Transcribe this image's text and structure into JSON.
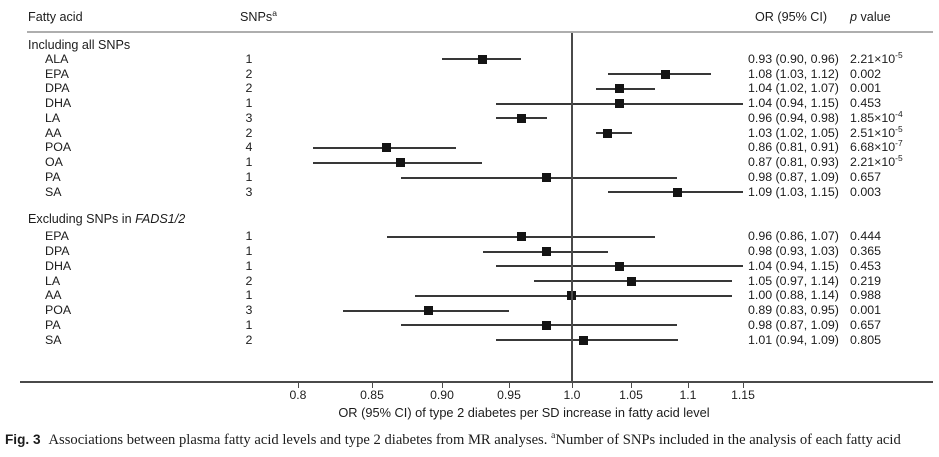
{
  "header": {
    "col_fatty_acid": "Fatty acid",
    "col_snps": "SNPs",
    "col_snps_sup": "a",
    "col_or": "OR (95% CI)",
    "col_p_italic": "p",
    "col_p_rest": " value"
  },
  "caption": {
    "fig_label": "Fig. 3",
    "text1": "Associations between plasma fatty acid levels and type 2 diabetes from MR analyses. ",
    "sup": "a",
    "text2": "Number of SNPs included in the analysis of each fatty acid"
  },
  "chart_data": {
    "type": "forest",
    "x_axis": {
      "scale": "log",
      "range": [
        0.8,
        1.15
      ],
      "reference_line": 1.0,
      "label": "OR (95% CI) of type 2 diabetes per SD increase in fatty acid level",
      "ticks": [
        {
          "value": 0.8,
          "label": "0.8"
        },
        {
          "value": 0.85,
          "label": "0.85"
        },
        {
          "value": 0.9,
          "label": "0.90"
        },
        {
          "value": 0.95,
          "label": "0.95"
        },
        {
          "value": 1.0,
          "label": "1.0"
        },
        {
          "value": 1.05,
          "label": "1.05"
        },
        {
          "value": 1.1,
          "label": "1.1"
        },
        {
          "value": 1.15,
          "label": "1.15"
        }
      ]
    },
    "groups": [
      {
        "label": "Including all SNPs",
        "label_italic": "",
        "rows": [
          {
            "fatty_acid": "ALA",
            "snps": "1",
            "or": 0.93,
            "ci_lower": 0.9,
            "ci_upper": 0.96,
            "or_ci_text": "0.93 (0.90, 0.96)",
            "p_value": "2.21×10^-5"
          },
          {
            "fatty_acid": "EPA",
            "snps": "2",
            "or": 1.08,
            "ci_lower": 1.03,
            "ci_upper": 1.12,
            "or_ci_text": "1.08 (1.03, 1.12)",
            "p_value": "0.002"
          },
          {
            "fatty_acid": "DPA",
            "snps": "2",
            "or": 1.04,
            "ci_lower": 1.02,
            "ci_upper": 1.07,
            "or_ci_text": "1.04 (1.02, 1.07)",
            "p_value": "0.001"
          },
          {
            "fatty_acid": "DHA",
            "snps": "1",
            "or": 1.04,
            "ci_lower": 0.94,
            "ci_upper": 1.15,
            "or_ci_text": "1.04 (0.94, 1.15)",
            "p_value": "0.453"
          },
          {
            "fatty_acid": "LA",
            "snps": "3",
            "or": 0.96,
            "ci_lower": 0.94,
            "ci_upper": 0.98,
            "or_ci_text": "0.96 (0.94, 0.98)",
            "p_value": "1.85×10^-4"
          },
          {
            "fatty_acid": "AA",
            "snps": "2",
            "or": 1.03,
            "ci_lower": 1.02,
            "ci_upper": 1.05,
            "or_ci_text": "1.03 (1.02, 1.05)",
            "p_value": "2.51×10^-5"
          },
          {
            "fatty_acid": "POA",
            "snps": "4",
            "or": 0.86,
            "ci_lower": 0.81,
            "ci_upper": 0.91,
            "or_ci_text": "0.86 (0.81, 0.91)",
            "p_value": "6.68×10^-7"
          },
          {
            "fatty_acid": "OA",
            "snps": "1",
            "or": 0.87,
            "ci_lower": 0.81,
            "ci_upper": 0.93,
            "or_ci_text": "0.87 (0.81, 0.93)",
            "p_value": "2.21×10^-5"
          },
          {
            "fatty_acid": "PA",
            "snps": "1",
            "or": 0.98,
            "ci_lower": 0.87,
            "ci_upper": 1.09,
            "or_ci_text": "0.98 (0.87, 1.09)",
            "p_value": "0.657"
          },
          {
            "fatty_acid": "SA",
            "snps": "3",
            "or": 1.09,
            "ci_lower": 1.03,
            "ci_upper": 1.15,
            "or_ci_text": "1.09 (1.03, 1.15)",
            "p_value": "0.003"
          }
        ]
      },
      {
        "label": "Excluding SNPs in ",
        "label_italic": "FADS1/2",
        "rows": [
          {
            "fatty_acid": "EPA",
            "snps": "1",
            "or": 0.96,
            "ci_lower": 0.86,
            "ci_upper": 1.07,
            "or_ci_text": "0.96 (0.86, 1.07)",
            "p_value": "0.444"
          },
          {
            "fatty_acid": "DPA",
            "snps": "1",
            "or": 0.98,
            "ci_lower": 0.93,
            "ci_upper": 1.03,
            "or_ci_text": "0.98 (0.93, 1.03)",
            "p_value": "0.365"
          },
          {
            "fatty_acid": "DHA",
            "snps": "1",
            "or": 1.04,
            "ci_lower": 0.94,
            "ci_upper": 1.15,
            "or_ci_text": "1.04 (0.94, 1.15)",
            "p_value": "0.453"
          },
          {
            "fatty_acid": "LA",
            "snps": "2",
            "or": 1.05,
            "ci_lower": 0.97,
            "ci_upper": 1.14,
            "or_ci_text": "1.05 (0.97, 1.14)",
            "p_value": "0.219"
          },
          {
            "fatty_acid": "AA",
            "snps": "1",
            "or": 1.0,
            "ci_lower": 0.88,
            "ci_upper": 1.14,
            "or_ci_text": "1.00 (0.88, 1.14)",
            "p_value": "0.988"
          },
          {
            "fatty_acid": "POA",
            "snps": "3",
            "or": 0.89,
            "ci_lower": 0.83,
            "ci_upper": 0.95,
            "or_ci_text": "0.89 (0.83, 0.95)",
            "p_value": "0.001"
          },
          {
            "fatty_acid": "PA",
            "snps": "1",
            "or": 0.98,
            "ci_lower": 0.87,
            "ci_upper": 1.09,
            "or_ci_text": "0.98 (0.87, 1.09)",
            "p_value": "0.657"
          },
          {
            "fatty_acid": "SA",
            "snps": "2",
            "or": 1.01,
            "ci_lower": 0.94,
            "ci_upper": 1.09,
            "or_ci_text": "1.01 (0.94, 1.09)",
            "p_value": "0.805"
          }
        ]
      }
    ],
    "colors": {
      "marker": "#141414",
      "ci_line": "#383838",
      "axis": "#4a4a4a",
      "header_rule": "#aeaeae",
      "text": "#1c1c1c"
    }
  }
}
